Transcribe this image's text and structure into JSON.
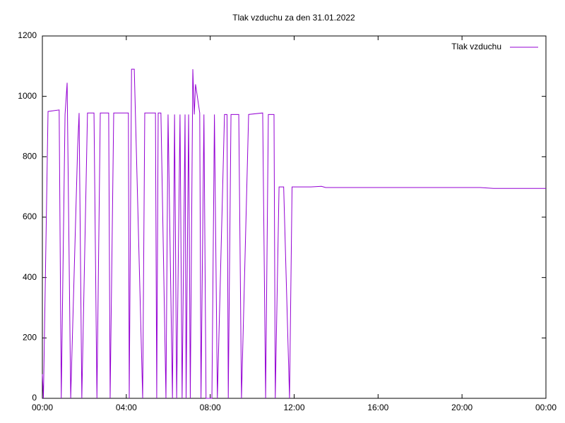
{
  "chart_data": {
    "type": "line",
    "title": "Tlak vzduchu za den 31.01.2022",
    "x": [
      0,
      0.05,
      0.27,
      0.8,
      0.9,
      1.08,
      1.18,
      1.35,
      1.68,
      1.75,
      1.88,
      2.15,
      2.46,
      2.6,
      2.76,
      3.16,
      3.23,
      3.4,
      4.1,
      4.14,
      4.25,
      4.38,
      4.78,
      4.88,
      5.39,
      5.45,
      5.52,
      5.65,
      5.89,
      5.99,
      6.2,
      6.3,
      6.4,
      6.56,
      6.66,
      6.8,
      6.85,
      6.97,
      7.05,
      7.17,
      7.24,
      7.3,
      7.5,
      7.56,
      7.7,
      7.8,
      8.08,
      8.2,
      8.34,
      8.68,
      8.8,
      8.86,
      8.99,
      9.36,
      9.49,
      9.83,
      10.5,
      10.64,
      10.77,
      11.04,
      11.1,
      11.28,
      11.5,
      11.78,
      11.9,
      12.8,
      13.3,
      13.5,
      20.87,
      21.5,
      24
    ],
    "series": [
      {
        "name": "Tlak vzduchu",
        "color": "#9400d3",
        "values": [
          80,
          0,
          950,
          955,
          0,
          940,
          1045,
          0,
          830,
          945,
          0,
          945,
          945,
          0,
          945,
          945,
          0,
          945,
          945,
          0,
          1090,
          1090,
          0,
          945,
          945,
          0,
          945,
          945,
          0,
          940,
          0,
          940,
          0,
          940,
          0,
          940,
          0,
          940,
          0,
          1090,
          940,
          1040,
          945,
          0,
          940,
          0,
          0,
          940,
          0,
          940,
          940,
          0,
          940,
          940,
          0,
          940,
          945,
          0,
          940,
          940,
          0,
          700,
          700,
          0,
          700,
          700,
          702,
          698,
          698,
          695,
          695
        ]
      }
    ],
    "xlim": [
      0,
      24
    ],
    "xticks": [
      {
        "value": 0,
        "label": "00:00"
      },
      {
        "value": 4,
        "label": "04:00"
      },
      {
        "value": 8,
        "label": "08:00"
      },
      {
        "value": 12,
        "label": "12:00"
      },
      {
        "value": 16,
        "label": "16:00"
      },
      {
        "value": 20,
        "label": "20:00"
      },
      {
        "value": 24,
        "label": "00:00"
      }
    ],
    "ylim": [
      0,
      1200
    ],
    "yticks": [
      0,
      200,
      400,
      600,
      800,
      1000,
      1200
    ],
    "legend": "top-right"
  }
}
